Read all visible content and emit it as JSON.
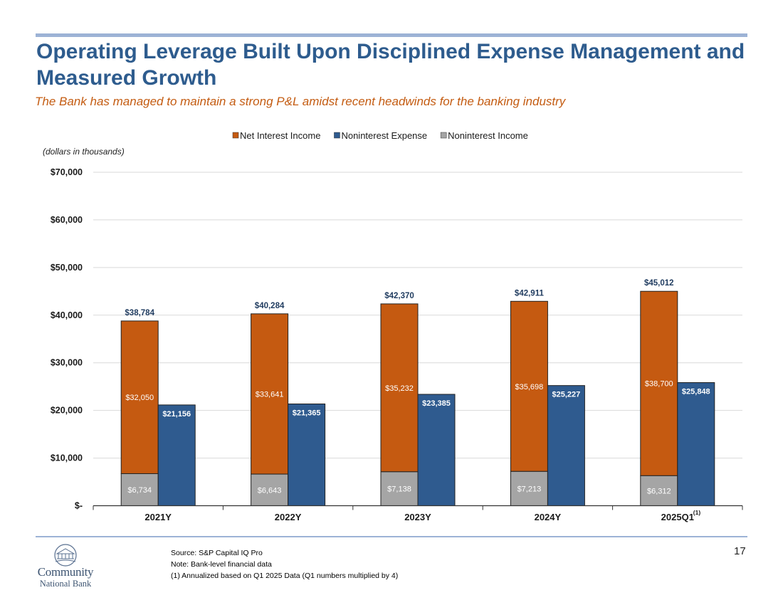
{
  "slide": {
    "title": "Operating Leverage Built Upon Disciplined Expense Management and Measured Growth",
    "subtitle": "The Bank has managed to maintain a strong P&L amidst recent headwinds for the banking industry",
    "page_number": "17",
    "logo": {
      "line1": "Community",
      "line2": "National Bank"
    },
    "footnotes": [
      "Source: S&P Capital IQ Pro",
      "Note: Bank-level financial data",
      "(1) Annualized based on Q1 2025 Data (Q1 numbers multiplied by 4)"
    ]
  },
  "chart_data": {
    "type": "bar",
    "unit_note": "(dollars in thousands)",
    "categories": [
      "2021Y",
      "2022Y",
      "2023Y",
      "2024Y",
      "2025Q1"
    ],
    "category_superscripts": [
      "",
      "",
      "",
      "",
      "(1)"
    ],
    "y_tick_labels": [
      "$-",
      "$10,000",
      "$20,000",
      "$30,000",
      "$40,000",
      "$50,000",
      "$60,000",
      "$70,000"
    ],
    "ylim": [
      0,
      70000
    ],
    "grid": true,
    "legend_position": "top",
    "stacked_bar": {
      "segments": [
        {
          "name": "Noninterest Income",
          "color": "#a5a5a5",
          "values": [
            6734,
            6643,
            7138,
            7213,
            6312
          ],
          "labels": [
            "$6,734",
            "$6,643",
            "$7,138",
            "$7,213",
            "$6,312"
          ]
        },
        {
          "name": "Net Interest Income",
          "color": "#c55a11",
          "values": [
            32050,
            33641,
            35232,
            35698,
            38700
          ],
          "labels": [
            "$32,050",
            "$33,641",
            "$35,232",
            "$35,698",
            "$38,700"
          ]
        }
      ],
      "totals": [
        38784,
        40284,
        42370,
        42911,
        45012
      ],
      "total_labels": [
        "$38,784",
        "$40,284",
        "$42,370",
        "$42,911",
        "$45,012"
      ]
    },
    "series": [
      {
        "name": "Noninterest Expense",
        "color": "#2f5b8f",
        "values": [
          21156,
          21365,
          23385,
          25227,
          25848
        ],
        "labels": [
          "$21,156",
          "$21,365",
          "$23,385",
          "$25,227",
          "$25,848"
        ]
      }
    ],
    "legend": [
      {
        "name": "Net Interest Income",
        "color": "#c55a11"
      },
      {
        "name": "Noninterest Expense",
        "color": "#2f5b8f"
      },
      {
        "name": "Noninterest Income",
        "color": "#a5a5a5"
      }
    ]
  }
}
